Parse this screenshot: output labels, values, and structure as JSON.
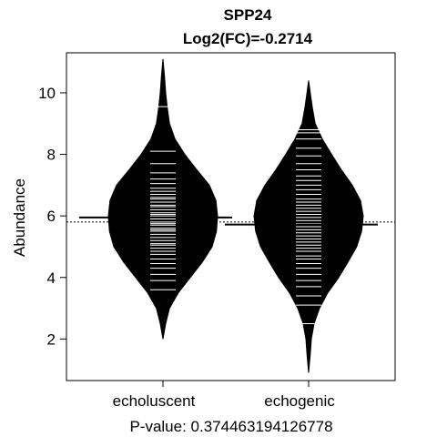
{
  "chart_data": {
    "type": "beanplot",
    "title": "SPP24",
    "subtitle": "Log2(FC)=-0.2714",
    "xlabel": "P-value: 0.374463194126778",
    "ylabel": "Abundance",
    "ylim": [
      0.65,
      11.3
    ],
    "yticks": [
      2,
      4,
      6,
      8,
      10
    ],
    "overall_mean": 5.8,
    "categories": [
      "echoluscent",
      "echogenic"
    ],
    "beans": [
      {
        "name": "echoluscent",
        "mean": 5.95,
        "min": 2.0,
        "max": 11.1,
        "density": [
          [
            2.0,
            0.0
          ],
          [
            2.5,
            0.05
          ],
          [
            3.0,
            0.12
          ],
          [
            3.5,
            0.28
          ],
          [
            4.0,
            0.5
          ],
          [
            4.5,
            0.72
          ],
          [
            5.0,
            0.9
          ],
          [
            5.5,
            0.98
          ],
          [
            6.0,
            1.0
          ],
          [
            6.5,
            0.97
          ],
          [
            7.0,
            0.85
          ],
          [
            7.5,
            0.62
          ],
          [
            8.0,
            0.4
          ],
          [
            8.5,
            0.22
          ],
          [
            9.0,
            0.12
          ],
          [
            9.5,
            0.08
          ],
          [
            10.0,
            0.05
          ],
          [
            10.5,
            0.03
          ],
          [
            11.1,
            0.0
          ]
        ],
        "values": [
          3.6,
          3.9,
          4.1,
          4.3,
          4.45,
          4.6,
          4.75,
          4.85,
          4.95,
          5.05,
          5.1,
          5.2,
          5.3,
          5.4,
          5.5,
          5.55,
          5.6,
          5.7,
          5.75,
          5.8,
          5.9,
          6.0,
          6.05,
          6.1,
          6.2,
          6.3,
          6.35,
          6.45,
          6.55,
          6.6,
          6.7,
          6.8,
          6.9,
          7.05,
          7.2,
          7.4,
          7.7,
          8.1,
          9.55
        ]
      },
      {
        "name": "echogenic",
        "mean": 5.72,
        "min": 0.9,
        "max": 10.4,
        "density": [
          [
            0.9,
            0.0
          ],
          [
            1.5,
            0.03
          ],
          [
            2.0,
            0.05
          ],
          [
            2.5,
            0.1
          ],
          [
            3.0,
            0.2
          ],
          [
            3.5,
            0.35
          ],
          [
            4.0,
            0.55
          ],
          [
            4.5,
            0.72
          ],
          [
            5.0,
            0.88
          ],
          [
            5.5,
            0.97
          ],
          [
            6.0,
            1.0
          ],
          [
            6.5,
            0.95
          ],
          [
            7.0,
            0.8
          ],
          [
            7.5,
            0.6
          ],
          [
            8.0,
            0.42
          ],
          [
            8.5,
            0.25
          ],
          [
            9.0,
            0.12
          ],
          [
            9.5,
            0.07
          ],
          [
            10.0,
            0.03
          ],
          [
            10.4,
            0.0
          ]
        ],
        "values": [
          2.5,
          3.1,
          3.4,
          3.7,
          3.9,
          4.1,
          4.3,
          4.45,
          4.6,
          4.7,
          4.85,
          4.95,
          5.05,
          5.15,
          5.25,
          5.35,
          5.45,
          5.55,
          5.65,
          5.75,
          5.85,
          5.95,
          6.05,
          6.15,
          6.25,
          6.35,
          6.45,
          6.55,
          6.7,
          6.85,
          7.0,
          7.15,
          7.3,
          7.5,
          7.7,
          7.95,
          8.2,
          8.5,
          8.7,
          8.8
        ]
      }
    ]
  }
}
